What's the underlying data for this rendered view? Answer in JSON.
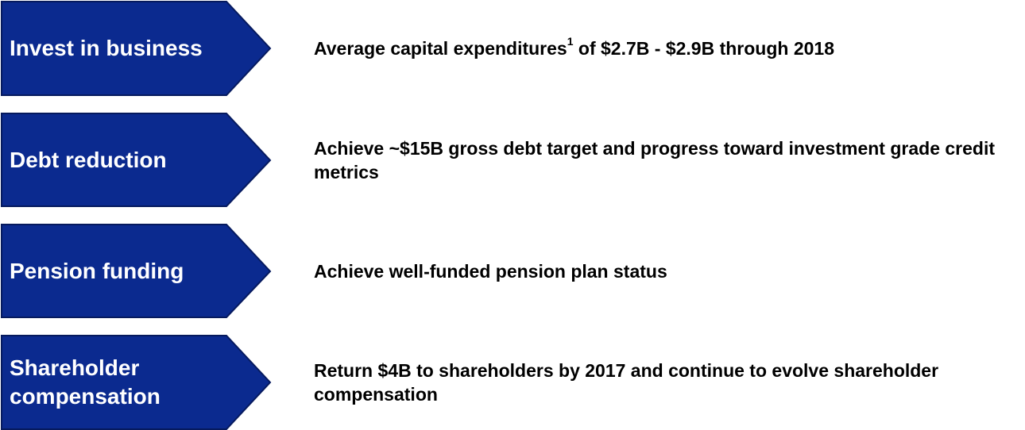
{
  "rows": [
    {
      "label": "Invest in business",
      "description": "Average capital expenditures",
      "footnote": "1",
      "description_end": " of $2.7B - $2.9B through 2018"
    },
    {
      "label": "Debt reduction",
      "description": "Achieve ~$15B gross debt target and progress toward investment grade credit metrics"
    },
    {
      "label": "Pension funding",
      "description": "Achieve well-funded pension plan status"
    },
    {
      "label": "Shareholder compensation",
      "description": "Return $4B to shareholders by 2017 and continue to evolve shareholder compensation"
    }
  ]
}
